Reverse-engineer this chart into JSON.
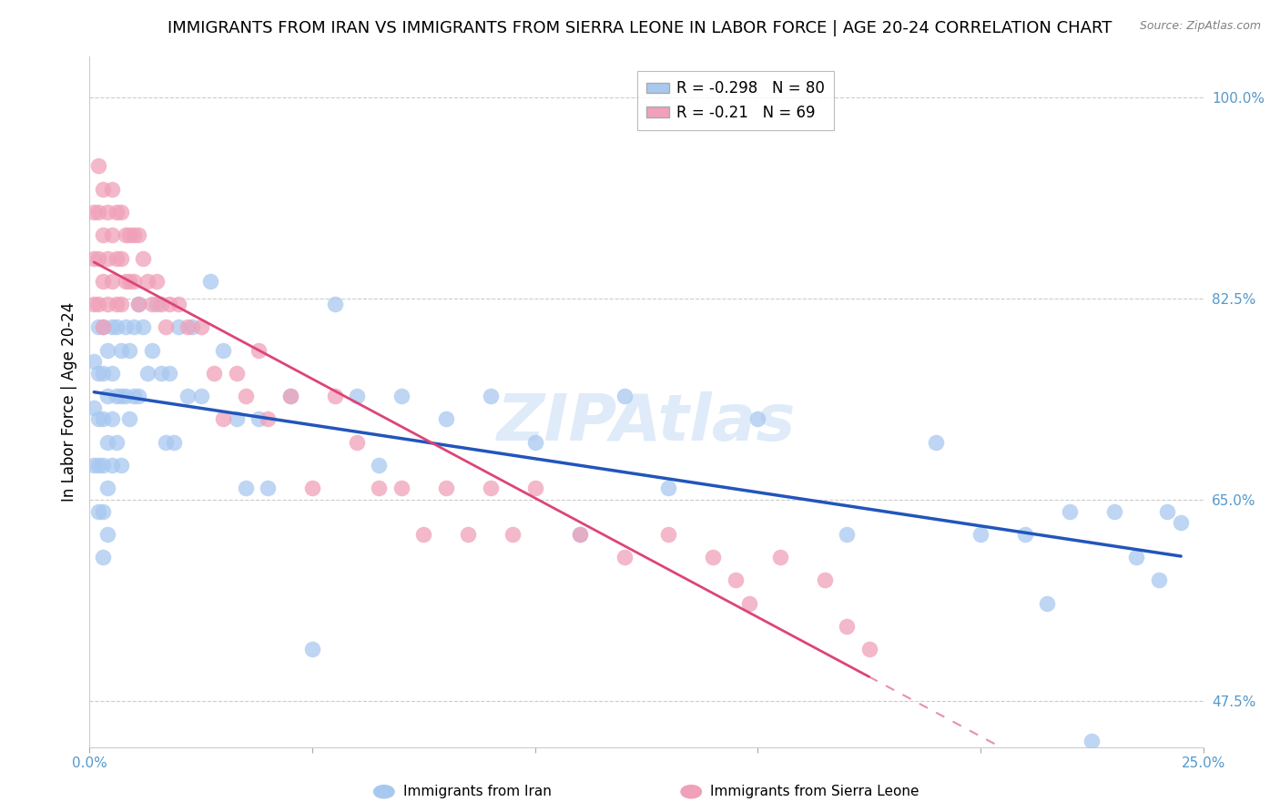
{
  "title": "IMMIGRANTS FROM IRAN VS IMMIGRANTS FROM SIERRA LEONE IN LABOR FORCE | AGE 20-24 CORRELATION CHART",
  "source": "Source: ZipAtlas.com",
  "ylabel": "In Labor Force | Age 20-24",
  "iran_R": -0.298,
  "iran_N": 80,
  "sl_R": -0.21,
  "sl_N": 69,
  "iran_color": "#A8C8F0",
  "sl_color": "#F0A0B8",
  "iran_line_color": "#2255BB",
  "sl_line_color": "#DD4477",
  "watermark": "ZIPAtlas",
  "xlim": [
    0.0,
    0.25
  ],
  "ylim": [
    0.435,
    1.035
  ],
  "iran_x": [
    0.001,
    0.001,
    0.001,
    0.002,
    0.002,
    0.002,
    0.002,
    0.002,
    0.003,
    0.003,
    0.003,
    0.003,
    0.003,
    0.003,
    0.004,
    0.004,
    0.004,
    0.004,
    0.004,
    0.005,
    0.005,
    0.005,
    0.005,
    0.006,
    0.006,
    0.006,
    0.007,
    0.007,
    0.007,
    0.008,
    0.008,
    0.009,
    0.009,
    0.01,
    0.01,
    0.011,
    0.011,
    0.012,
    0.013,
    0.014,
    0.015,
    0.016,
    0.017,
    0.018,
    0.019,
    0.02,
    0.022,
    0.023,
    0.025,
    0.027,
    0.03,
    0.033,
    0.035,
    0.038,
    0.04,
    0.045,
    0.05,
    0.055,
    0.06,
    0.065,
    0.07,
    0.08,
    0.09,
    0.1,
    0.11,
    0.12,
    0.13,
    0.15,
    0.17,
    0.19,
    0.2,
    0.21,
    0.215,
    0.22,
    0.225,
    0.23,
    0.235,
    0.24,
    0.242,
    0.245
  ],
  "iran_y": [
    0.77,
    0.73,
    0.68,
    0.8,
    0.76,
    0.72,
    0.68,
    0.64,
    0.8,
    0.76,
    0.72,
    0.68,
    0.64,
    0.6,
    0.78,
    0.74,
    0.7,
    0.66,
    0.62,
    0.8,
    0.76,
    0.72,
    0.68,
    0.8,
    0.74,
    0.7,
    0.78,
    0.74,
    0.68,
    0.8,
    0.74,
    0.78,
    0.72,
    0.8,
    0.74,
    0.82,
    0.74,
    0.8,
    0.76,
    0.78,
    0.82,
    0.76,
    0.7,
    0.76,
    0.7,
    0.8,
    0.74,
    0.8,
    0.74,
    0.84,
    0.78,
    0.72,
    0.66,
    0.72,
    0.66,
    0.74,
    0.52,
    0.82,
    0.74,
    0.68,
    0.74,
    0.72,
    0.74,
    0.7,
    0.62,
    0.74,
    0.66,
    0.72,
    0.62,
    0.7,
    0.62,
    0.62,
    0.56,
    0.64,
    0.44,
    0.64,
    0.6,
    0.58,
    0.64,
    0.63
  ],
  "sl_x": [
    0.001,
    0.001,
    0.001,
    0.002,
    0.002,
    0.002,
    0.002,
    0.003,
    0.003,
    0.003,
    0.003,
    0.004,
    0.004,
    0.004,
    0.005,
    0.005,
    0.005,
    0.006,
    0.006,
    0.006,
    0.007,
    0.007,
    0.007,
    0.008,
    0.008,
    0.009,
    0.009,
    0.01,
    0.01,
    0.011,
    0.011,
    0.012,
    0.013,
    0.014,
    0.015,
    0.016,
    0.017,
    0.018,
    0.02,
    0.022,
    0.025,
    0.028,
    0.03,
    0.033,
    0.035,
    0.038,
    0.04,
    0.045,
    0.05,
    0.055,
    0.06,
    0.065,
    0.07,
    0.075,
    0.08,
    0.085,
    0.09,
    0.095,
    0.1,
    0.11,
    0.12,
    0.13,
    0.14,
    0.145,
    0.148,
    0.155,
    0.165,
    0.17,
    0.175
  ],
  "sl_y": [
    0.9,
    0.86,
    0.82,
    0.94,
    0.9,
    0.86,
    0.82,
    0.92,
    0.88,
    0.84,
    0.8,
    0.9,
    0.86,
    0.82,
    0.92,
    0.88,
    0.84,
    0.9,
    0.86,
    0.82,
    0.9,
    0.86,
    0.82,
    0.88,
    0.84,
    0.88,
    0.84,
    0.88,
    0.84,
    0.88,
    0.82,
    0.86,
    0.84,
    0.82,
    0.84,
    0.82,
    0.8,
    0.82,
    0.82,
    0.8,
    0.8,
    0.76,
    0.72,
    0.76,
    0.74,
    0.78,
    0.72,
    0.74,
    0.66,
    0.74,
    0.7,
    0.66,
    0.66,
    0.62,
    0.66,
    0.62,
    0.66,
    0.62,
    0.66,
    0.62,
    0.6,
    0.62,
    0.6,
    0.58,
    0.56,
    0.6,
    0.58,
    0.54,
    0.52
  ],
  "background_color": "#FFFFFF",
  "grid_color": "#CCCCCC",
  "axis_color": "#5599CC",
  "title_fontsize": 13,
  "label_fontsize": 12
}
